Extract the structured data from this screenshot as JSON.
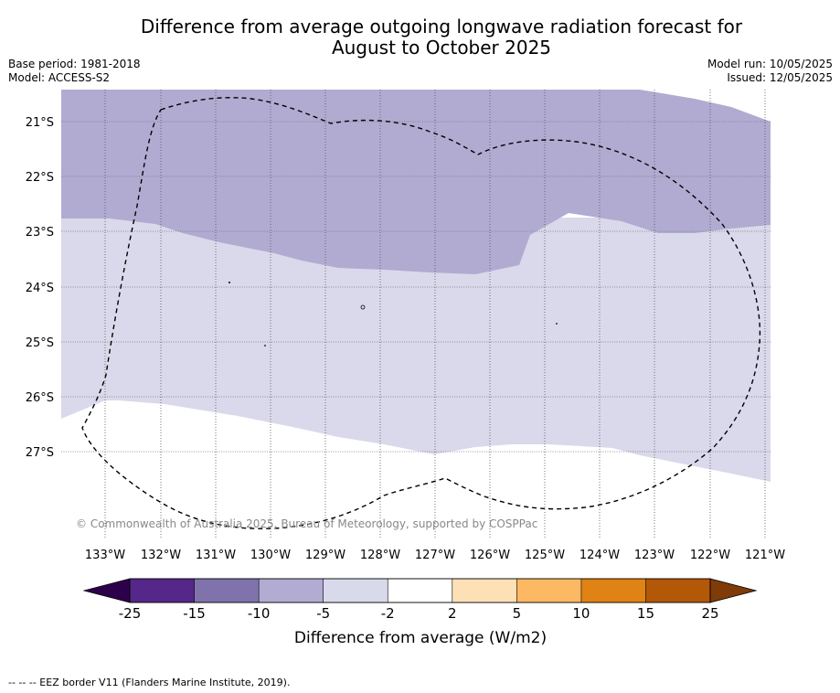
{
  "header": {
    "title_line1": "Difference from average outgoing longwave radiation forecast for",
    "title_line2": "August to October 2025",
    "base_period": "Base period: 1981-2018",
    "model": "Model: ACCESS-S2",
    "model_run": "Model run: 10/05/2025",
    "issued": "Issued: 12/05/2025"
  },
  "map": {
    "lat_labels": [
      "21°S",
      "22°S",
      "23°S",
      "24°S",
      "25°S",
      "26°S",
      "27°S"
    ],
    "lon_labels": [
      "133°W",
      "132°W",
      "131°W",
      "130°W",
      "129°W",
      "128°W",
      "127°W",
      "126°W",
      "125°W",
      "124°W",
      "123°W",
      "122°W",
      "121°W"
    ],
    "copyright": "© Commonwealth of Australia 2025, Bureau of Meteorology, supported by COSPPac",
    "colors": {
      "minus_10_to_minus_5": "#b1abd2",
      "minus_5_to_minus_2": "#d9d9eb",
      "minus_2_to_2": "#ffffff",
      "eez_border": "#000000"
    }
  },
  "colorbar": {
    "tick_labels": [
      "-25",
      "-15",
      "-10",
      "-5",
      "-2",
      "2",
      "5",
      "10",
      "15",
      "25"
    ],
    "label": "Difference from average (W/m2)",
    "colors": {
      "under": "#2d004b",
      "bins": [
        "#542788",
        "#8073ac",
        "#b2abd2",
        "#d8daeb",
        "#ffffff",
        "#fee0b6",
        "#fdb863",
        "#e08214",
        "#b35806"
      ],
      "over": "#7f3b08"
    }
  },
  "footer": {
    "eez_legend": "--  --  -- EEZ border V11 (Flanders Marine Institute, 2019)."
  }
}
